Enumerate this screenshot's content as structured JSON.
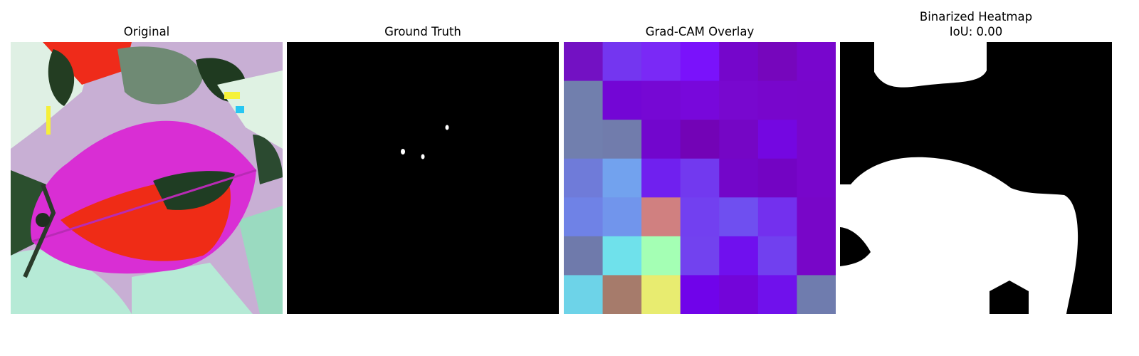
{
  "panels": [
    {
      "title": "Original"
    },
    {
      "title": "Ground Truth"
    },
    {
      "title": "Grad-CAM Overlay"
    },
    {
      "title": "Binarized Heatmap",
      "subtitle": "IoU: 0.00",
      "iou": 0.0
    }
  ],
  "gradcam_grid": [
    [
      "#7311c3",
      "#7436f0",
      "#7a29f6",
      "#7a12fb",
      "#7506cb",
      "#7606bc",
      "#7806cd"
    ],
    [
      "#717fad",
      "#7306d5",
      "#7608d4",
      "#7808db",
      "#7808cf",
      "#7806cc",
      "#7806cb"
    ],
    [
      "#717fae",
      "#717cac",
      "#7206cd",
      "#7303b6",
      "#7506c5",
      "#7407e1",
      "#7806cb"
    ],
    [
      "#6f7bd9",
      "#72a2ee",
      "#7020ef",
      "#7239ef",
      "#7306c9",
      "#7304c3",
      "#7806cb"
    ],
    [
      "#6f82e6",
      "#7195ec",
      "#d08080",
      "#7240f0",
      "#6f4ff0",
      "#7330ee",
      "#7806c8"
    ],
    [
      "#6f7aab",
      "#6fe1eb",
      "#a4ffb4",
      "#7242ef",
      "#7010ee",
      "#7140ef",
      "#7806c8"
    ],
    [
      "#6dd3e8",
      "#a67b6b",
      "#e8ec70",
      "#7003ea",
      "#7305d9",
      "#7011ec",
      "#6f7cae"
    ]
  ]
}
